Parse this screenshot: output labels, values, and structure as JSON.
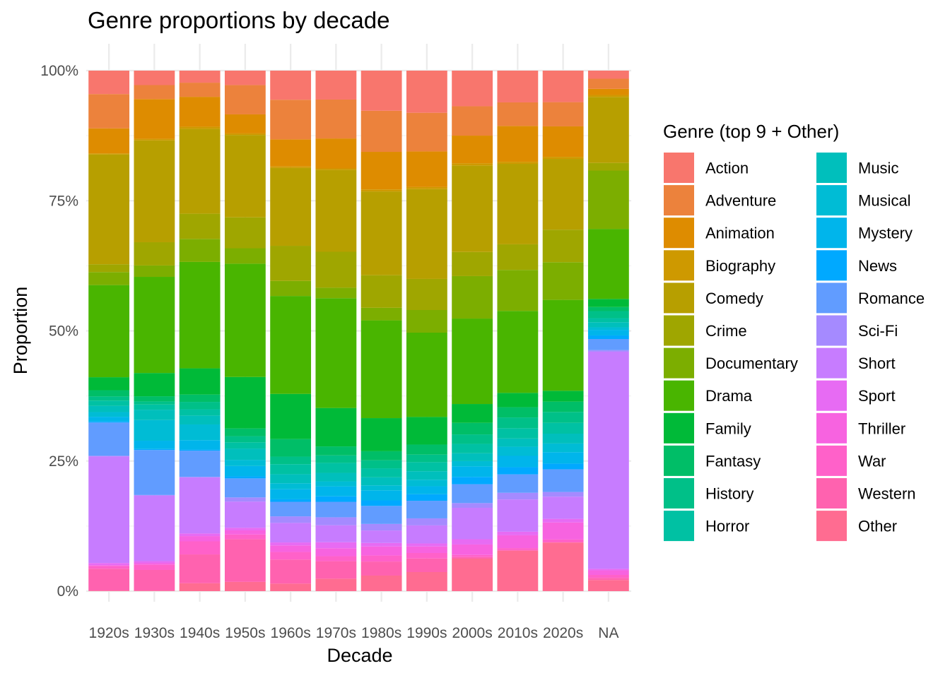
{
  "chart_data": {
    "type": "bar",
    "stacked": true,
    "normalized": true,
    "title": "Genre proportions by decade",
    "xlabel": "Decade",
    "ylabel": "Proportion",
    "ylim": [
      0,
      1
    ],
    "yticks": [
      0,
      0.25,
      0.5,
      0.75,
      1.0
    ],
    "ytick_labels": [
      "0%",
      "25%",
      "50%",
      "75%",
      "100%"
    ],
    "grid": true,
    "legend": {
      "title": "Genre (top 9 + Other)",
      "position": "right",
      "columns": 2
    },
    "categories": [
      "1920s",
      "1930s",
      "1940s",
      "1950s",
      "1960s",
      "1970s",
      "1980s",
      "1990s",
      "2000s",
      "2010s",
      "2020s",
      "NA"
    ],
    "series": [
      {
        "name": "Action",
        "color": "#F8766D",
        "values": [
          0.045,
          0.028,
          0.023,
          0.028,
          0.058,
          0.058,
          0.08,
          0.084,
          0.068,
          0.062,
          0.061,
          0.016
        ]
      },
      {
        "name": "Adventure",
        "color": "#EC823C",
        "values": [
          0.066,
          0.027,
          0.027,
          0.057,
          0.079,
          0.078,
          0.082,
          0.077,
          0.056,
          0.046,
          0.047,
          0.02
        ]
      },
      {
        "name": "Animation",
        "color": "#DE8C00",
        "values": [
          0.048,
          0.077,
          0.057,
          0.037,
          0.054,
          0.06,
          0.075,
          0.071,
          0.053,
          0.07,
          0.059,
          0.012
        ]
      },
      {
        "name": "Biography",
        "color": "#CE9900",
        "values": [
          0.002,
          0.003,
          0.004,
          0.003,
          0.003,
          0.003,
          0.004,
          0.004,
          0.004,
          0.004,
          0.004,
          0.004
        ]
      },
      {
        "name": "Comedy",
        "color": "#B79F00",
        "values": [
          0.211,
          0.197,
          0.162,
          0.16,
          0.155,
          0.164,
          0.167,
          0.179,
          0.165,
          0.157,
          0.137,
          0.13
        ]
      },
      {
        "name": "Crime",
        "color": "#9FA600",
        "values": [
          0.015,
          0.045,
          0.048,
          0.06,
          0.07,
          0.072,
          0.065,
          0.062,
          0.046,
          0.05,
          0.063,
          0.015
        ]
      },
      {
        "name": "Documentary",
        "color": "#7CAE00",
        "values": [
          0.025,
          0.022,
          0.044,
          0.03,
          0.03,
          0.021,
          0.025,
          0.045,
          0.081,
          0.08,
          0.073,
          0.115
        ]
      },
      {
        "name": "Drama",
        "color": "#49B500",
        "values": [
          0.177,
          0.186,
          0.203,
          0.22,
          0.195,
          0.22,
          0.195,
          0.168,
          0.163,
          0.16,
          0.176,
          0.138
        ]
      },
      {
        "name": "Family",
        "color": "#00BA38",
        "values": [
          0.025,
          0.045,
          0.05,
          0.1,
          0.09,
          0.077,
          0.066,
          0.055,
          0.036,
          0.028,
          0.021,
          0.016
        ]
      },
      {
        "name": "Fantasy",
        "color": "#00BE67",
        "values": [
          0.012,
          0.01,
          0.014,
          0.015,
          0.035,
          0.018,
          0.018,
          0.02,
          0.022,
          0.02,
          0.02,
          0.008
        ]
      },
      {
        "name": "History",
        "color": "#00C088",
        "values": [
          0.008,
          0.006,
          0.014,
          0.012,
          0.015,
          0.015,
          0.016,
          0.015,
          0.018,
          0.021,
          0.021,
          0.014
        ]
      },
      {
        "name": "Horror",
        "color": "#00C1A3",
        "values": [
          0.01,
          0.01,
          0.012,
          0.012,
          0.02,
          0.02,
          0.018,
          0.018,
          0.018,
          0.02,
          0.021,
          0.008
        ]
      },
      {
        "name": "Music",
        "color": "#00BFBC",
        "values": [
          0.012,
          0.02,
          0.017,
          0.022,
          0.018,
          0.017,
          0.016,
          0.017,
          0.015,
          0.016,
          0.019,
          0.01
        ]
      },
      {
        "name": "Musical",
        "color": "#00BCD5",
        "values": [
          0.009,
          0.04,
          0.03,
          0.012,
          0.012,
          0.01,
          0.01,
          0.013,
          0.01,
          0.018,
          0.017,
          0.005
        ]
      },
      {
        "name": "Mystery",
        "color": "#00B5EB",
        "values": [
          0.009,
          0.016,
          0.018,
          0.02,
          0.02,
          0.02,
          0.02,
          0.016,
          0.02,
          0.022,
          0.022,
          0.011
        ]
      },
      {
        "name": "News",
        "color": "#00A9FF",
        "values": [
          0.002,
          0.002,
          0.002,
          0.004,
          0.005,
          0.011,
          0.011,
          0.013,
          0.014,
          0.014,
          0.011,
          0.007
        ]
      },
      {
        "name": "Romance",
        "color": "#619CFF",
        "values": [
          0.064,
          0.087,
          0.05,
          0.037,
          0.029,
          0.031,
          0.036,
          0.035,
          0.036,
          0.036,
          0.044,
          0.022
        ]
      },
      {
        "name": "Sci-Fi",
        "color": "#A58AFF",
        "values": [
          0.001,
          0.001,
          0.001,
          0.008,
          0.013,
          0.016,
          0.013,
          0.014,
          0.009,
          0.013,
          0.009,
          0.003
        ]
      },
      {
        "name": "Short",
        "color": "#C77CFF",
        "values": [
          0.205,
          0.127,
          0.107,
          0.051,
          0.039,
          0.034,
          0.025,
          0.036,
          0.06,
          0.063,
          0.043,
          0.428
        ]
      },
      {
        "name": "Sport",
        "color": "#E76BF3",
        "values": [
          0.004,
          0.004,
          0.005,
          0.005,
          0.006,
          0.012,
          0.007,
          0.006,
          0.01,
          0.007,
          0.007,
          0.003
        ]
      },
      {
        "name": "Thriller",
        "color": "#F763E0",
        "values": [
          0.002,
          0.003,
          0.01,
          0.008,
          0.013,
          0.016,
          0.018,
          0.013,
          0.02,
          0.025,
          0.033,
          0.009
        ]
      },
      {
        "name": "War",
        "color": "#FF61C9",
        "values": [
          0.005,
          0.01,
          0.025,
          0.009,
          0.015,
          0.01,
          0.012,
          0.011,
          0.004,
          0.004,
          0.005,
          0.006
        ]
      },
      {
        "name": "Western",
        "color": "#FF62AF",
        "values": [
          0.042,
          0.04,
          0.055,
          0.083,
          0.048,
          0.035,
          0.028,
          0.027,
          0.003,
          0.001,
          0.001,
          0.004
        ]
      },
      {
        "name": "Other",
        "color": "#FF6C91",
        "values": [
          0.001,
          0.001,
          0.015,
          0.018,
          0.015,
          0.025,
          0.031,
          0.038,
          0.062,
          0.079,
          0.094,
          0.022
        ]
      }
    ]
  }
}
